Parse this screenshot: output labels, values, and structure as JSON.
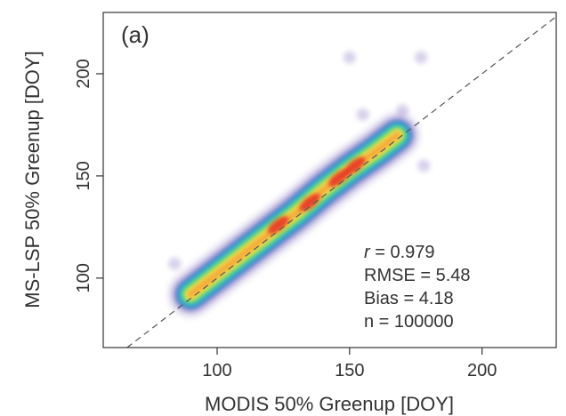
{
  "chart_data": {
    "type": "heatmap",
    "subtype": "density-scatter",
    "panel_label": "(a)",
    "xlabel": "MODIS 50% Greenup [DOY]",
    "ylabel": "MS-LSP 50% Greenup [DOY]",
    "xlim": [
      57,
      228
    ],
    "ylim": [
      66,
      230
    ],
    "xticks": [
      100,
      150,
      200
    ],
    "yticks": [
      100,
      150,
      200
    ],
    "xtick_labels": [
      "100",
      "150",
      "200"
    ],
    "ytick_labels": [
      "100",
      "150",
      "200"
    ],
    "grid": false,
    "reference_line": {
      "type": "1:1",
      "style": "dashed",
      "color": "#555555"
    },
    "colormap": [
      "#4b2fa0",
      "#2f7fd6",
      "#27c6c6",
      "#8fdc5c",
      "#f3e64a",
      "#f7a23a",
      "#e63226",
      "#c41a2a"
    ],
    "density_ridge": [
      {
        "x": 90,
        "y": 92
      },
      {
        "x": 100,
        "y": 102
      },
      {
        "x": 110,
        "y": 112
      },
      {
        "x": 120,
        "y": 122
      },
      {
        "x": 130,
        "y": 132
      },
      {
        "x": 140,
        "y": 143
      },
      {
        "x": 150,
        "y": 153
      },
      {
        "x": 160,
        "y": 162
      },
      {
        "x": 168,
        "y": 170
      }
    ],
    "density_peaks": [
      {
        "x": 123,
        "y": 126
      },
      {
        "x": 135,
        "y": 137
      },
      {
        "x": 146,
        "y": 149
      },
      {
        "x": 152,
        "y": 155
      }
    ],
    "outliers": [
      {
        "x": 150,
        "y": 208
      },
      {
        "x": 177,
        "y": 208
      },
      {
        "x": 178,
        "y": 155
      },
      {
        "x": 84,
        "y": 107
      },
      {
        "x": 155,
        "y": 180
      },
      {
        "x": 170,
        "y": 182
      }
    ],
    "stats": {
      "r_label": "r",
      "r_value": " = 0.979",
      "rmse": "RMSE = 5.48",
      "bias": "Bias = 4.18",
      "n": "n = 100000"
    }
  }
}
